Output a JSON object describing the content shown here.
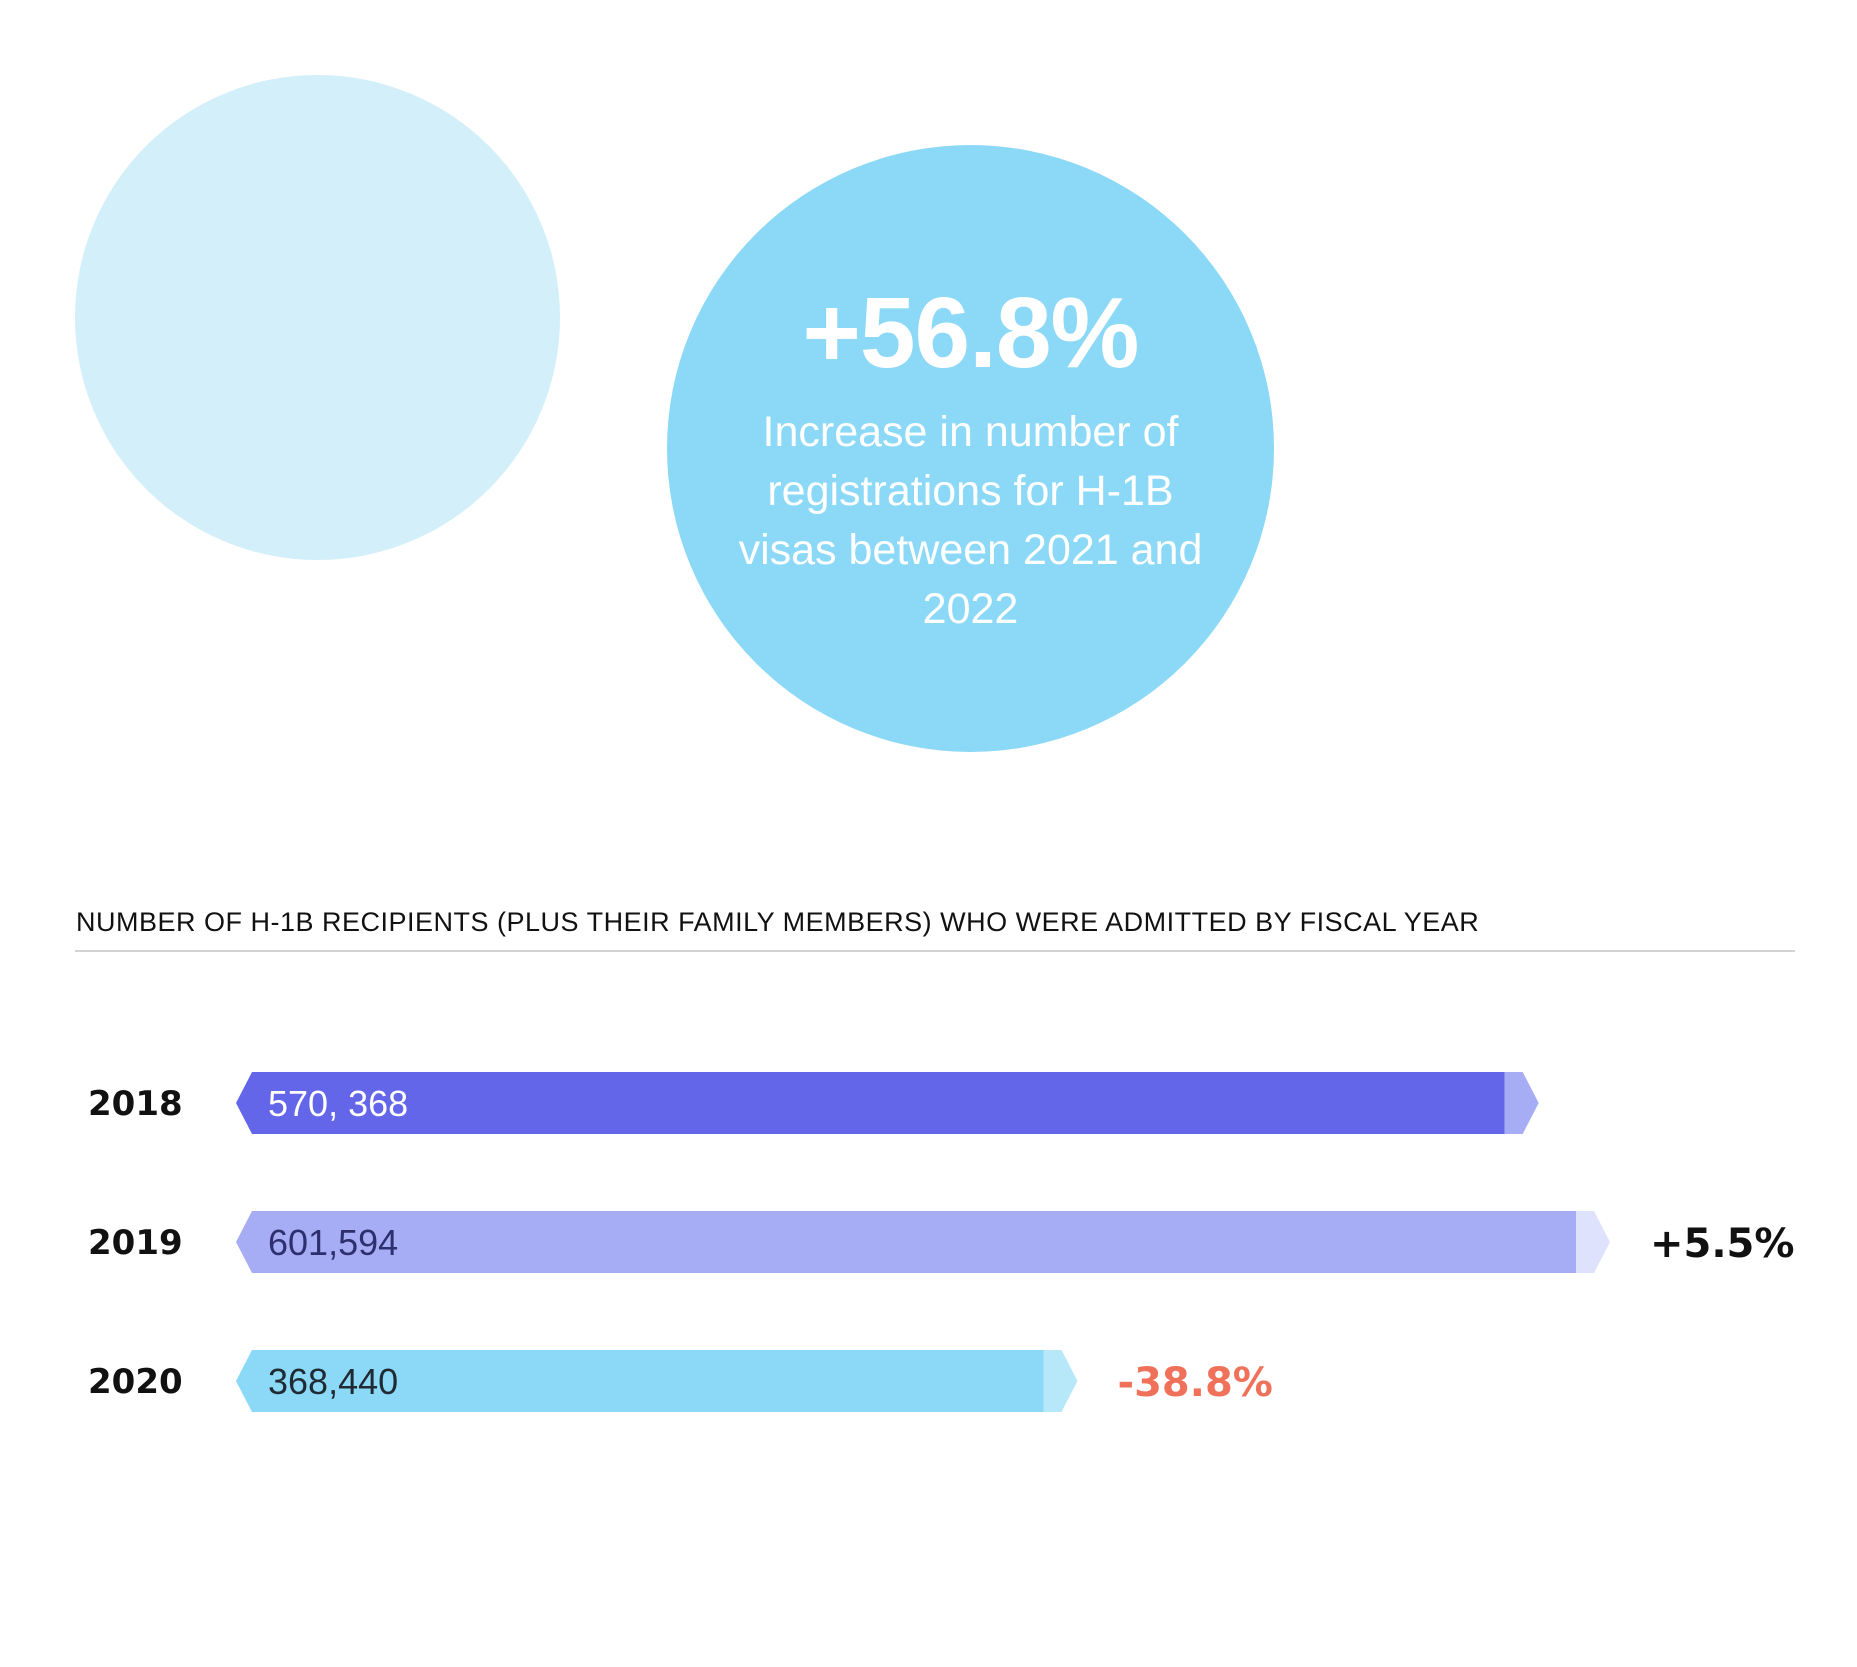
{
  "highlight": {
    "value": "+56.8%",
    "description": "Increase in number of registrations for H-1B visas between 2021 and 2022"
  },
  "colors": {
    "circle_light": "#d2effa",
    "circle_main": "#8bd9f6",
    "change_positive": "#111111",
    "change_negative": "#f0715a"
  },
  "chart_data": {
    "type": "bar",
    "orientation": "horizontal",
    "title": "NUMBER OF H-1B RECIPIENTS (PLUS THEIR FAMILY MEMBERS) WHO WERE ADMITTED BY FISCAL YEAR",
    "categories": [
      "2018",
      "2019",
      "2020"
    ],
    "values": [
      570368,
      601594,
      368440
    ],
    "value_labels": [
      "570, 368",
      "601,594",
      "368,440"
    ],
    "changes": [
      "",
      "+5.5%",
      "-38.8%"
    ],
    "bar_colors": [
      "#6366e9",
      "#a7adf5",
      "#8bd9f6"
    ],
    "tip_colors": [
      "#a7adf5",
      "#dfe2fc",
      "#b6e8fa"
    ],
    "label_colors": [
      "#ffffff",
      "#2d2f6e",
      "#1f2a33"
    ],
    "xlim": [
      0,
      601594
    ],
    "grid": false,
    "legend": "none"
  }
}
